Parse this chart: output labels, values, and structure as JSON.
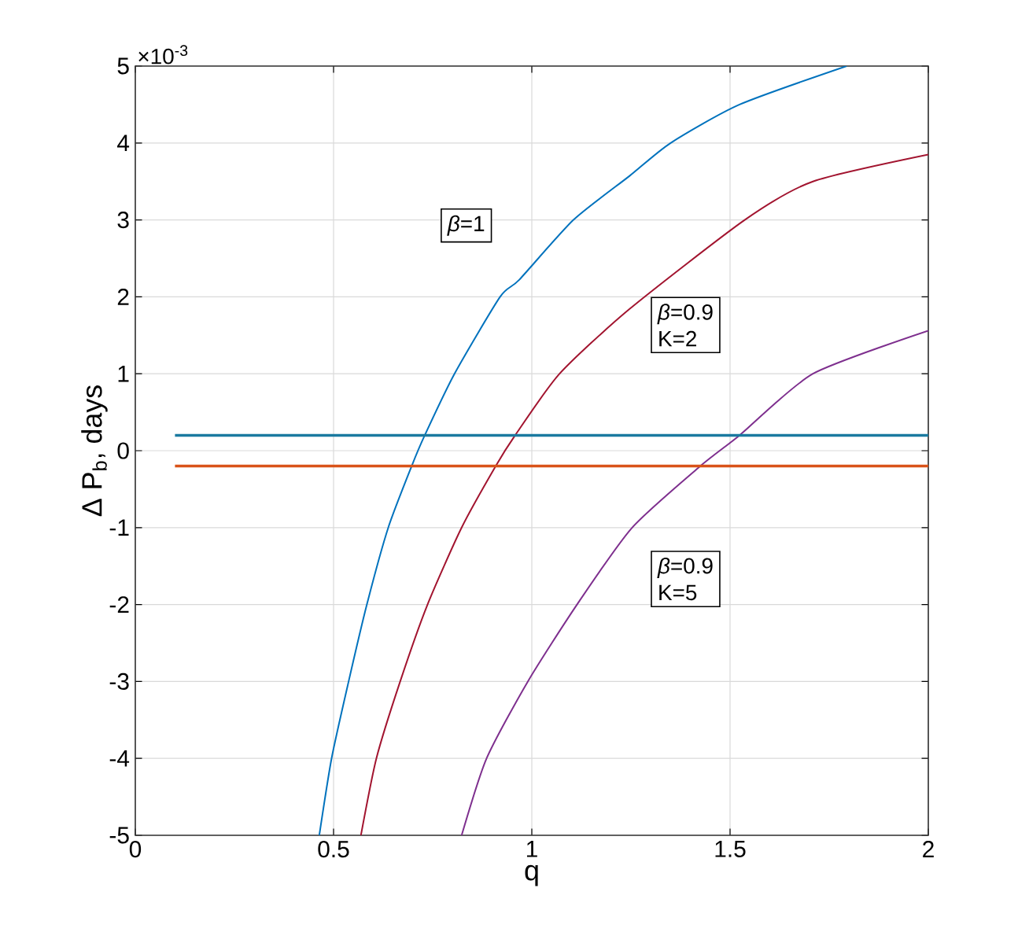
{
  "chart_data": {
    "type": "line",
    "xlabel": "q",
    "ylabel": "Δ P$_{b}$, days",
    "xlim": [
      0,
      2
    ],
    "ylim": [
      -5,
      5
    ],
    "xticks": [
      0,
      0.5,
      1,
      1.5,
      2
    ],
    "yticks": [
      -5,
      -4,
      -3,
      -2,
      -1,
      0,
      1,
      2,
      3,
      4,
      5
    ],
    "grid": true,
    "marker": "none",
    "line_style": "solid",
    "series": [
      {
        "color": "#0072bd",
        "x": [
          0.464,
          0.495,
          0.538,
          0.584,
          0.638,
          0.697,
          0.73,
          0.805,
          0.92,
          0.968,
          1.105,
          1.246,
          1.35,
          1.524,
          1.794
        ],
        "values": [
          -5,
          -4,
          -3,
          -2,
          -1,
          -0.2,
          0.2,
          1,
          2,
          2.22,
          3,
          3.57,
          4,
          4.5,
          5
        ]
      },
      {
        "color": "#a2142f",
        "x": [
          0.569,
          0.608,
          0.668,
          0.737,
          0.823,
          0.909,
          0.958,
          1.07,
          1.246,
          1.537,
          1.709,
          2
        ],
        "values": [
          -5,
          -4,
          -3,
          -2,
          -1,
          -0.2,
          0.2,
          1,
          1.84,
          3,
          3.5,
          3.85
        ]
      },
      {
        "color": "#7e2f8e",
        "x": [
          0.823,
          0.886,
          0.99,
          1.114,
          1.253,
          1.425,
          1.524,
          1.709,
          2
        ],
        "values": [
          -5,
          -4,
          -3,
          -2,
          -1,
          -0.2,
          0.2,
          1,
          1.56
        ]
      },
      {
        "color": "#1a7aa0",
        "x": [
          0.1,
          2
        ],
        "values": [
          0.2,
          0.2
        ]
      },
      {
        "color": "#d95319",
        "x": [
          0.1,
          2
        ],
        "values": [
          -0.2,
          -0.2
        ]
      }
    ],
    "annotations": [
      "×10$^{-3}$",
      "*β*=1",
      "*β*=0.9",
      "K=2",
      "*β*=0.9",
      "K=5"
    ]
  }
}
